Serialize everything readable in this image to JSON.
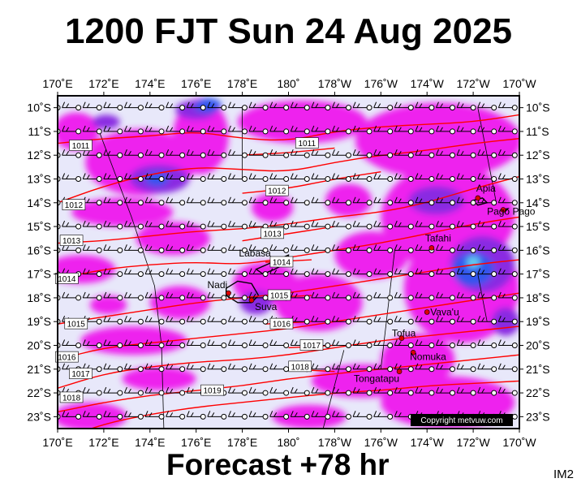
{
  "title": "1200 FJT Sun 24 Aug 2025",
  "footer": "Forecast +78 hr",
  "chart_id": "IM2",
  "copyright": "Copyright metvuw.com",
  "colors": {
    "background": "#e8e8fa",
    "rain_light": "#ee22ee",
    "rain_medium": "#8a2be2",
    "rain_heavy": "#3355ee",
    "rain_extreme": "#66ccee",
    "isobar": "#ff0000",
    "land": "#000000",
    "place_dot": "#dd0000",
    "wind": "#000000"
  },
  "map": {
    "lon_range": [
      170,
      190
    ],
    "lat_range": [
      -23.5,
      -9.5
    ],
    "lon_ticks": [
      {
        "lon": 170,
        "label": "170˚E"
      },
      {
        "lon": 172,
        "label": "172˚E"
      },
      {
        "lon": 174,
        "label": "174˚E"
      },
      {
        "lon": 176,
        "label": "176˚E"
      },
      {
        "lon": 178,
        "label": "178˚E"
      },
      {
        "lon": 180,
        "label": "180˚"
      },
      {
        "lon": 182,
        "label": "178˚W"
      },
      {
        "lon": 184,
        "label": "176˚W"
      },
      {
        "lon": 186,
        "label": "174˚W"
      },
      {
        "lon": 188,
        "label": "172˚W"
      },
      {
        "lon": 190,
        "label": "170˚W"
      }
    ],
    "lat_ticks": [
      {
        "lat": -10,
        "label": "10˚S"
      },
      {
        "lat": -11,
        "label": "11˚S"
      },
      {
        "lat": -12,
        "label": "12˚S"
      },
      {
        "lat": -13,
        "label": "13˚S"
      },
      {
        "lat": -14,
        "label": "14˚S"
      },
      {
        "lat": -15,
        "label": "15˚S"
      },
      {
        "lat": -16,
        "label": "16˚S"
      },
      {
        "lat": -17,
        "label": "17˚S"
      },
      {
        "lat": -18,
        "label": "18˚S"
      },
      {
        "lat": -19,
        "label": "19˚S"
      },
      {
        "lat": -20,
        "label": "20˚S"
      },
      {
        "lat": -21,
        "label": "21˚S"
      },
      {
        "lat": -22,
        "label": "22˚S"
      },
      {
        "lat": -23,
        "label": "23˚S"
      }
    ],
    "places": [
      {
        "name": "Apia",
        "lon": 188.2,
        "lat": -13.8
      },
      {
        "name": "Pago Pago",
        "lon": 189.3,
        "lat": -14.3
      },
      {
        "name": "Tafahi",
        "lon": 186.2,
        "lat": -15.9
      },
      {
        "name": "Labasa",
        "lon": 179.4,
        "lat": -16.4
      },
      {
        "name": "Nadi",
        "lon": 177.4,
        "lat": -17.8
      },
      {
        "name": "Suva",
        "lon": 178.4,
        "lat": -18.1
      },
      {
        "name": "Vava'u",
        "lon": 186.0,
        "lat": -18.6
      },
      {
        "name": "Tofua",
        "lon": 184.9,
        "lat": -19.7
      },
      {
        "name": "Nomuka",
        "lon": 185.4,
        "lat": -20.3
      },
      {
        "name": "Tongatapu",
        "lon": 184.8,
        "lat": -21.1
      }
    ],
    "isobars": [
      {
        "label": "1011",
        "points": [
          [
            170,
            -11.5
          ],
          [
            172,
            -11.3
          ],
          [
            174,
            -11.2
          ],
          [
            176,
            -11.0
          ],
          [
            178,
            -11.3
          ],
          [
            180,
            -11.4
          ],
          [
            182,
            -11.0
          ],
          [
            184,
            -10.8
          ],
          [
            186,
            -10.7
          ],
          [
            188,
            -10.6
          ],
          [
            190,
            -10.3
          ]
        ],
        "label_at": [
          171,
          -11.6
        ]
      },
      {
        "label": "1011",
        "points": [
          [
            178,
            -12.0
          ],
          [
            180,
            -11.9
          ],
          [
            182,
            -11.7
          ]
        ],
        "label_at": [
          180.8,
          -11.5
        ]
      },
      {
        "label": "1012",
        "points": [
          [
            170,
            -14.0
          ],
          [
            172,
            -13.3
          ],
          [
            174,
            -12.8
          ],
          [
            176,
            -12.5
          ],
          [
            178,
            -12.6
          ],
          [
            180,
            -12.7
          ],
          [
            182,
            -12.3
          ],
          [
            184,
            -12.0
          ],
          [
            186,
            -11.8
          ],
          [
            188,
            -11.5
          ],
          [
            190,
            -11.3
          ]
        ],
        "label_at": [
          170.7,
          -14.1
        ]
      },
      {
        "label": "1012",
        "points": [
          [
            178,
            -13.6
          ],
          [
            180,
            -13.4
          ],
          [
            182,
            -13.0
          ],
          [
            184,
            -12.7
          ]
        ],
        "label_at": [
          179.5,
          -13.5
        ]
      },
      {
        "label": "1013",
        "points": [
          [
            170,
            -15.7
          ],
          [
            172,
            -15.6
          ],
          [
            174,
            -15.4
          ],
          [
            176,
            -15.2
          ],
          [
            178,
            -15.1
          ],
          [
            180,
            -14.9
          ],
          [
            182,
            -14.6
          ],
          [
            184,
            -14.4
          ],
          [
            186,
            -14.0
          ],
          [
            188,
            -13.4
          ],
          [
            190,
            -12.9
          ]
        ],
        "label_at": [
          170.6,
          -15.6
        ]
      },
      {
        "label": "1013",
        "points": [
          [
            178,
            -15.6
          ],
          [
            180,
            -15.3
          ],
          [
            182,
            -15.0
          ]
        ],
        "label_at": [
          179.3,
          -15.3
        ]
      },
      {
        "label": "1014",
        "points": [
          [
            170,
            -17.2
          ],
          [
            172,
            -16.8
          ],
          [
            174,
            -16.6
          ],
          [
            176,
            -16.5
          ],
          [
            178,
            -16.6
          ],
          [
            180,
            -16.3
          ],
          [
            182,
            -16.0
          ],
          [
            184,
            -15.7
          ],
          [
            186,
            -15.3
          ],
          [
            188,
            -14.9
          ],
          [
            190,
            -14.6
          ]
        ],
        "label_at": [
          170.4,
          -17.2
        ]
      },
      {
        "label": "1014",
        "points": [
          [
            179,
            -16.5
          ],
          [
            181,
            -16.4
          ]
        ],
        "label_at": [
          179.7,
          -16.5
        ]
      },
      {
        "label": "1015",
        "points": [
          [
            170,
            -19.1
          ],
          [
            172,
            -18.8
          ],
          [
            174,
            -18.5
          ],
          [
            176,
            -18.2
          ],
          [
            178,
            -18.0
          ],
          [
            180,
            -17.8
          ],
          [
            182,
            -17.5
          ],
          [
            184,
            -17.2
          ],
          [
            186,
            -16.9
          ],
          [
            188,
            -16.6
          ],
          [
            190,
            -16.4
          ]
        ],
        "label_at": [
          170.8,
          -19.1
        ]
      },
      {
        "label": "1015",
        "points": [
          [
            179,
            -18.0
          ],
          [
            181,
            -17.9
          ]
        ],
        "label_at": [
          179.6,
          -17.9
        ]
      },
      {
        "label": "1016",
        "points": [
          [
            170,
            -20.6
          ],
          [
            172,
            -20.1
          ],
          [
            174,
            -19.9
          ],
          [
            176,
            -19.7
          ],
          [
            178,
            -19.5
          ],
          [
            180,
            -19.3
          ],
          [
            182,
            -19.0
          ],
          [
            184,
            -18.7
          ],
          [
            186,
            -18.4
          ],
          [
            188,
            -18.1
          ],
          [
            190,
            -17.8
          ]
        ],
        "label_at": [
          170.4,
          -20.5
        ]
      },
      {
        "label": "1016",
        "points": [
          [
            179,
            -19.1
          ],
          [
            181,
            -19.0
          ]
        ],
        "label_at": [
          179.7,
          -19.1
        ]
      },
      {
        "label": "1017",
        "points": [
          [
            170,
            -21.8
          ],
          [
            172,
            -21.2
          ],
          [
            174,
            -20.9
          ],
          [
            176,
            -20.7
          ],
          [
            178,
            -20.6
          ],
          [
            180,
            -20.4
          ],
          [
            182,
            -20.1
          ],
          [
            184,
            -19.8
          ],
          [
            186,
            -19.6
          ],
          [
            188,
            -19.4
          ],
          [
            190,
            -19.2
          ]
        ],
        "label_at": [
          171.0,
          -21.2
        ]
      },
      {
        "label": "1017",
        "points": [
          [
            180,
            -20.1
          ],
          [
            182,
            -20.0
          ]
        ],
        "label_at": [
          181.0,
          -20.0
        ]
      },
      {
        "label": "1018",
        "points": [
          [
            170,
            -22.8
          ],
          [
            172,
            -22.4
          ],
          [
            174,
            -22.1
          ],
          [
            176,
            -21.9
          ],
          [
            178,
            -21.7
          ],
          [
            180,
            -21.4
          ],
          [
            182,
            -21.2
          ],
          [
            184,
            -21.0
          ],
          [
            186,
            -20.8
          ],
          [
            188,
            -20.6
          ],
          [
            190,
            -20.4
          ]
        ],
        "label_at": [
          170.6,
          -22.2
        ]
      },
      {
        "label": "1018",
        "points": [
          [
            180,
            -21.0
          ],
          [
            182,
            -21.1
          ]
        ],
        "label_at": [
          180.5,
          -20.9
        ]
      },
      {
        "label": "1019",
        "points": [
          [
            170,
            -24.0
          ],
          [
            172,
            -23.3
          ],
          [
            174,
            -22.9
          ],
          [
            176,
            -22.6
          ],
          [
            178,
            -22.4
          ],
          [
            180,
            -22.2
          ],
          [
            182,
            -22.0
          ],
          [
            184,
            -21.9
          ],
          [
            186,
            -21.7
          ],
          [
            188,
            -21.6
          ],
          [
            190,
            -21.5
          ]
        ],
        "label_at": [
          176.7,
          -21.9
        ]
      }
    ],
    "rain_areas": [
      {
        "level": 1,
        "lon": 173.6,
        "lat": -12.3,
        "rx": 2.4,
        "ry": 1.4
      },
      {
        "level": 1,
        "lon": 170.8,
        "lat": -11.0,
        "rx": 1.0,
        "ry": 0.8
      },
      {
        "level": 1,
        "lon": 172.8,
        "lat": -14.4,
        "rx": 2.2,
        "ry": 0.6
      },
      {
        "level": 1,
        "lon": 171.0,
        "lat": -16.8,
        "rx": 1.5,
        "ry": 0.6
      },
      {
        "level": 1,
        "lon": 175.0,
        "lat": -15.5,
        "rx": 1.6,
        "ry": 0.7
      },
      {
        "level": 1,
        "lon": 176.2,
        "lat": -11.2,
        "rx": 1.2,
        "ry": 1.6
      },
      {
        "level": 1,
        "lon": 180.6,
        "lat": -10.6,
        "rx": 2.8,
        "ry": 0.9
      },
      {
        "level": 1,
        "lon": 186.5,
        "lat": -11.4,
        "rx": 3.6,
        "ry": 1.6
      },
      {
        "level": 1,
        "lon": 186.9,
        "lat": -14.6,
        "rx": 2.9,
        "ry": 2.2
      },
      {
        "level": 1,
        "lon": 187.5,
        "lat": -17.6,
        "rx": 2.5,
        "ry": 2.3
      },
      {
        "level": 1,
        "lon": 183.6,
        "lat": -16.2,
        "rx": 1.6,
        "ry": 1.0
      },
      {
        "level": 1,
        "lon": 181.3,
        "lat": -18.2,
        "rx": 1.9,
        "ry": 1.2
      },
      {
        "level": 1,
        "lon": 179.0,
        "lat": -17.4,
        "rx": 1.4,
        "ry": 0.9
      },
      {
        "level": 1,
        "lon": 175.3,
        "lat": -18.2,
        "rx": 1.3,
        "ry": 0.7
      },
      {
        "level": 1,
        "lon": 172.2,
        "lat": -18.3,
        "rx": 0.8,
        "ry": 0.4
      },
      {
        "level": 1,
        "lon": 173.3,
        "lat": -19.8,
        "rx": 2.3,
        "ry": 0.6
      },
      {
        "level": 1,
        "lon": 174.4,
        "lat": -21.4,
        "rx": 1.6,
        "ry": 0.5
      },
      {
        "level": 1,
        "lon": 171.4,
        "lat": -23.0,
        "rx": 1.6,
        "ry": 0.6
      },
      {
        "level": 1,
        "lon": 185.6,
        "lat": -20.6,
        "rx": 1.6,
        "ry": 1.1
      },
      {
        "level": 1,
        "lon": 183.2,
        "lat": -21.5,
        "rx": 2.2,
        "ry": 0.7
      },
      {
        "level": 1,
        "lon": 186.9,
        "lat": -22.4,
        "rx": 2.9,
        "ry": 1.1
      },
      {
        "level": 1,
        "lon": 180.9,
        "lat": -23.0,
        "rx": 1.6,
        "ry": 0.5
      },
      {
        "level": 1,
        "lon": 179.3,
        "lat": -14.2,
        "rx": 0.9,
        "ry": 0.6
      },
      {
        "level": 1,
        "lon": 182.6,
        "lat": -13.9,
        "rx": 1.0,
        "ry": 0.7
      },
      {
        "level": 2,
        "lon": 174.4,
        "lat": -13.0,
        "rx": 1.3,
        "ry": 0.6
      },
      {
        "level": 2,
        "lon": 176.0,
        "lat": -10.1,
        "rx": 0.9,
        "ry": 0.4
      },
      {
        "level": 2,
        "lon": 186.4,
        "lat": -13.9,
        "rx": 1.2,
        "ry": 0.6
      },
      {
        "level": 2,
        "lon": 188.4,
        "lat": -16.6,
        "rx": 1.4,
        "ry": 1.2
      },
      {
        "level": 2,
        "lon": 189.4,
        "lat": -19.0,
        "rx": 0.6,
        "ry": 0.6
      },
      {
        "level": 2,
        "lon": 178.6,
        "lat": -18.2,
        "rx": 0.7,
        "ry": 0.5
      },
      {
        "level": 2,
        "lon": 172.1,
        "lat": -10.6,
        "rx": 0.6,
        "ry": 0.3
      },
      {
        "level": 3,
        "lon": 188.0,
        "lat": -16.8,
        "rx": 0.9,
        "ry": 0.7
      },
      {
        "level": 3,
        "lon": 176.5,
        "lat": -9.9,
        "rx": 0.6,
        "ry": 0.3
      },
      {
        "level": 3,
        "lon": 174.3,
        "lat": -13.0,
        "rx": 0.5,
        "ry": 0.3
      },
      {
        "level": 4,
        "lon": 188.0,
        "lat": -16.5,
        "rx": 0.3,
        "ry": 0.25
      }
    ],
    "land": [
      {
        "name": "viti-levu",
        "points": [
          [
            177.3,
            -17.6
          ],
          [
            177.8,
            -17.3
          ],
          [
            178.4,
            -17.4
          ],
          [
            178.7,
            -17.9
          ],
          [
            178.4,
            -18.2
          ],
          [
            177.8,
            -18.2
          ],
          [
            177.3,
            -17.9
          ]
        ]
      },
      {
        "name": "vanua-levu",
        "points": [
          [
            178.6,
            -16.8
          ],
          [
            179.3,
            -16.5
          ],
          [
            180.0,
            -16.2
          ],
          [
            180.0,
            -16.5
          ],
          [
            179.4,
            -16.8
          ],
          [
            178.9,
            -17.0
          ]
        ]
      },
      {
        "name": "upolu",
        "points": [
          [
            188.0,
            -13.9
          ],
          [
            188.4,
            -13.8
          ],
          [
            188.6,
            -14.0
          ],
          [
            188.2,
            -14.1
          ]
        ]
      },
      {
        "name": "tutuila",
        "points": [
          [
            189.2,
            -14.3
          ],
          [
            189.5,
            -14.25
          ],
          [
            189.4,
            -14.35
          ]
        ]
      }
    ],
    "wind_grid": {
      "lon_start": 170.0,
      "lon_step": 0.9,
      "lat_start": -10.0,
      "lat_step": -1.0,
      "rows": 14,
      "cols": 23
    },
    "wind_dir_deg": 110,
    "boundary_lines": [
      [
        [
          171.8,
          -11.0
        ],
        [
          173.2,
          -14.6
        ],
        [
          174.2,
          -17.5
        ],
        [
          174.5,
          -20.0
        ],
        [
          174.6,
          -23.5
        ]
      ],
      [
        [
          178.0,
          -10.0
        ],
        [
          178.0,
          -13.0
        ]
      ],
      [
        [
          182.4,
          -20.2
        ],
        [
          181.5,
          -23.5
        ]
      ],
      [
        [
          184.6,
          -16.0
        ],
        [
          184.0,
          -21.0
        ]
      ],
      [
        [
          188.2,
          -10.0
        ],
        [
          189.0,
          -14.0
        ]
      ],
      [
        [
          188.2,
          -17.0
        ],
        [
          188.6,
          -19.0
        ]
      ]
    ]
  }
}
